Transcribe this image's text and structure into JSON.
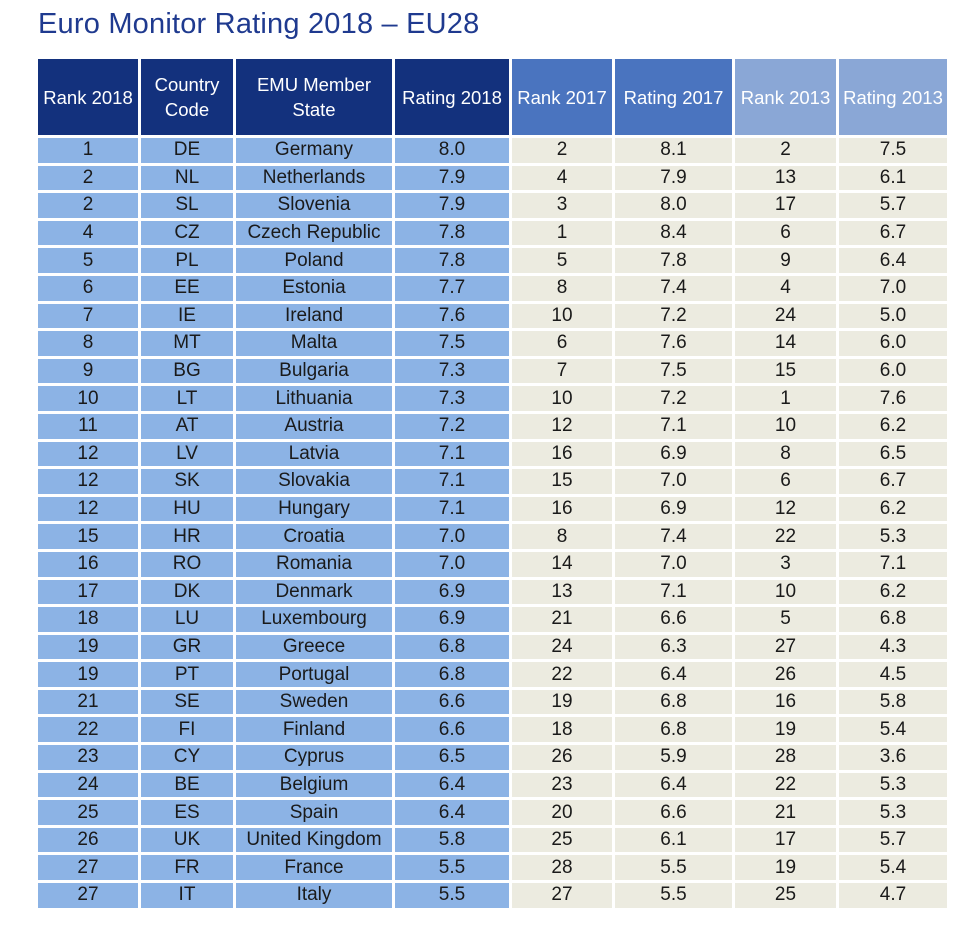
{
  "title": "Euro Monitor Rating 2018 – EU28",
  "headers": [
    "Rank 2018",
    "Country Code",
    "EMU Member State",
    "Rating 2018",
    "Rank 2017",
    "Rating 2017",
    "Rank 2013",
    "Rating 2013"
  ],
  "header_lines": [
    [
      "Rank 2018"
    ],
    [
      "Country",
      "Code"
    ],
    [
      "EMU Member",
      "State"
    ],
    [
      "Rating 2018"
    ],
    [
      "Rank 2017"
    ],
    [
      "Rating 2017"
    ],
    [
      "Rank 2013"
    ],
    [
      "Rating 2013"
    ]
  ],
  "colors": {
    "title": "#1f3a8f",
    "header_dark": "#13317d",
    "header_mid": "#4a74bf",
    "header_light": "#8aa7d6",
    "cell_blue": "#8cb3e5",
    "cell_cream": "#ecebe0"
  },
  "rows": [
    [
      "1",
      "DE",
      "Germany",
      "8.0",
      "2",
      "8.1",
      "2",
      "7.5"
    ],
    [
      "2",
      "NL",
      "Netherlands",
      "7.9",
      "4",
      "7.9",
      "13",
      "6.1"
    ],
    [
      "2",
      "SL",
      "Slovenia",
      "7.9",
      "3",
      "8.0",
      "17",
      "5.7"
    ],
    [
      "4",
      "CZ",
      "Czech Republic",
      "7.8",
      "1",
      "8.4",
      "6",
      "6.7"
    ],
    [
      "5",
      "PL",
      "Poland",
      "7.8",
      "5",
      "7.8",
      "9",
      "6.4"
    ],
    [
      "6",
      "EE",
      "Estonia",
      "7.7",
      "8",
      "7.4",
      "4",
      "7.0"
    ],
    [
      "7",
      "IE",
      "Ireland",
      "7.6",
      "10",
      "7.2",
      "24",
      "5.0"
    ],
    [
      "8",
      "MT",
      "Malta",
      "7.5",
      "6",
      "7.6",
      "14",
      "6.0"
    ],
    [
      "9",
      "BG",
      "Bulgaria",
      "7.3",
      "7",
      "7.5",
      "15",
      "6.0"
    ],
    [
      "10",
      "LT",
      "Lithuania",
      "7.3",
      "10",
      "7.2",
      "1",
      "7.6"
    ],
    [
      "11",
      "AT",
      "Austria",
      "7.2",
      "12",
      "7.1",
      "10",
      "6.2"
    ],
    [
      "12",
      "LV",
      "Latvia",
      "7.1",
      "16",
      "6.9",
      "8",
      "6.5"
    ],
    [
      "12",
      "SK",
      "Slovakia",
      "7.1",
      "15",
      "7.0",
      "6",
      "6.7"
    ],
    [
      "12",
      "HU",
      "Hungary",
      "7.1",
      "16",
      "6.9",
      "12",
      "6.2"
    ],
    [
      "15",
      "HR",
      "Croatia",
      "7.0",
      "8",
      "7.4",
      "22",
      "5.3"
    ],
    [
      "16",
      "RO",
      "Romania",
      "7.0",
      "14",
      "7.0",
      "3",
      "7.1"
    ],
    [
      "17",
      "DK",
      "Denmark",
      "6.9",
      "13",
      "7.1",
      "10",
      "6.2"
    ],
    [
      "18",
      "LU",
      "Luxembourg",
      "6.9",
      "21",
      "6.6",
      "5",
      "6.8"
    ],
    [
      "19",
      "GR",
      "Greece",
      "6.8",
      "24",
      "6.3",
      "27",
      "4.3"
    ],
    [
      "19",
      "PT",
      "Portugal",
      "6.8",
      "22",
      "6.4",
      "26",
      "4.5"
    ],
    [
      "21",
      "SE",
      "Sweden",
      "6.6",
      "19",
      "6.8",
      "16",
      "5.8"
    ],
    [
      "22",
      "FI",
      "Finland",
      "6.6",
      "18",
      "6.8",
      "19",
      "5.4"
    ],
    [
      "23",
      "CY",
      "Cyprus",
      "6.5",
      "26",
      "5.9",
      "28",
      "3.6"
    ],
    [
      "24",
      "BE",
      "Belgium",
      "6.4",
      "23",
      "6.4",
      "22",
      "5.3"
    ],
    [
      "25",
      "ES",
      "Spain",
      "6.4",
      "20",
      "6.6",
      "21",
      "5.3"
    ],
    [
      "26",
      "UK",
      "United Kingdom",
      "5.8",
      "25",
      "6.1",
      "17",
      "5.7"
    ],
    [
      "27",
      "FR",
      "France",
      "5.5",
      "28",
      "5.5",
      "19",
      "5.4"
    ],
    [
      "27",
      "IT",
      "Italy",
      "5.5",
      "27",
      "5.5",
      "25",
      "4.7"
    ]
  ]
}
